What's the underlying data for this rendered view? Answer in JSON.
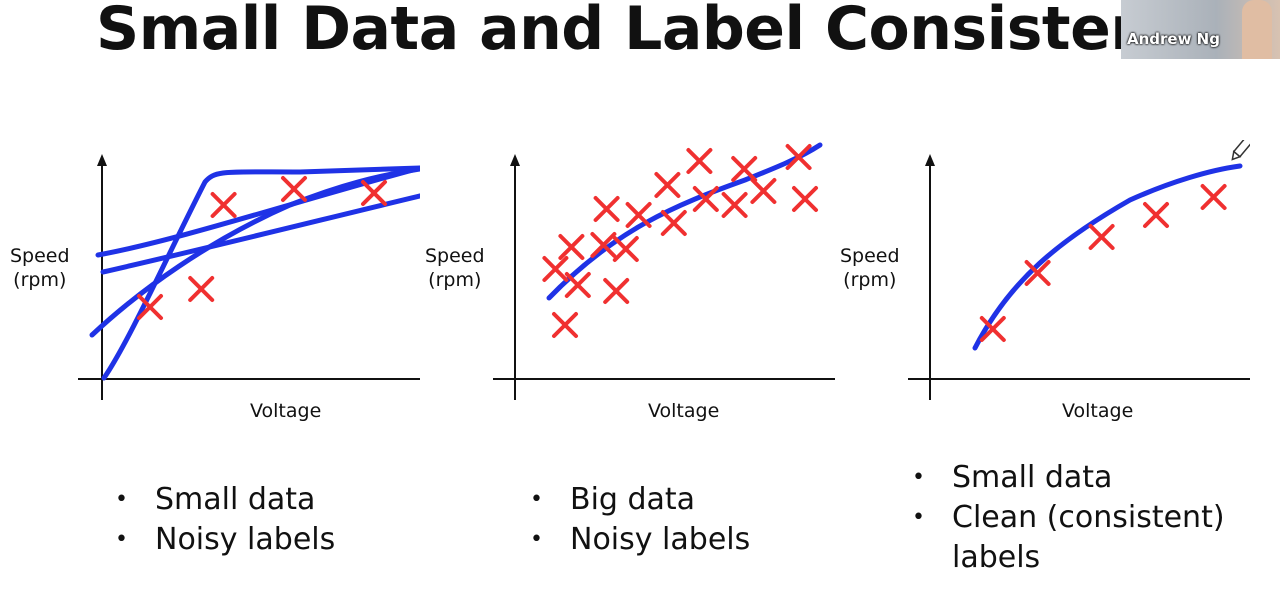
{
  "slide": {
    "title": "Small Data and Label Consisten"
  },
  "video": {
    "name": "Andrew Ng"
  },
  "colors": {
    "marks": "#f03030",
    "curve": "#1f32e6",
    "axis": "#111111"
  },
  "panels": [
    {
      "ylabel_line1": "Speed",
      "ylabel_line2": "(rpm)",
      "xlabel": "Voltage",
      "bullets": [
        "Small data",
        "Noisy labels"
      ]
    },
    {
      "ylabel_line1": "Speed",
      "ylabel_line2": "(rpm)",
      "xlabel": "Voltage",
      "bullets": [
        "Big data",
        "Noisy labels"
      ]
    },
    {
      "ylabel_line1": "Speed",
      "ylabel_line2": "(rpm)",
      "xlabel": "Voltage",
      "bullets": [
        "Small data",
        "Clean (consistent)",
        "labels"
      ]
    }
  ],
  "chart_data": [
    {
      "type": "scatter",
      "xlabel": "Voltage",
      "ylabel": "Speed (rpm)",
      "points": [
        [
          0.15,
          0.36
        ],
        [
          0.31,
          0.45
        ],
        [
          0.38,
          0.87
        ],
        [
          0.6,
          0.95
        ],
        [
          0.85,
          0.93
        ]
      ]
    },
    {
      "type": "scatter",
      "xlabel": "Voltage",
      "ylabel": "Speed (rpm)",
      "points": [
        [
          0.12,
          0.55
        ],
        [
          0.17,
          0.66
        ],
        [
          0.19,
          0.47
        ],
        [
          0.15,
          0.27
        ],
        [
          0.28,
          0.85
        ],
        [
          0.27,
          0.67
        ],
        [
          0.31,
          0.44
        ],
        [
          0.34,
          0.65
        ],
        [
          0.38,
          0.82
        ],
        [
          0.47,
          0.97
        ],
        [
          0.49,
          0.78
        ],
        [
          0.57,
          1.09
        ],
        [
          0.59,
          0.9
        ],
        [
          0.68,
          0.87
        ],
        [
          0.71,
          1.05
        ],
        [
          0.77,
          0.94
        ],
        [
          0.88,
          1.11
        ],
        [
          0.9,
          0.9
        ]
      ]
    },
    {
      "type": "scatter",
      "xlabel": "Voltage",
      "ylabel": "Speed (rpm)",
      "points": [
        [
          0.19,
          0.25
        ],
        [
          0.33,
          0.53
        ],
        [
          0.53,
          0.71
        ],
        [
          0.7,
          0.82
        ],
        [
          0.88,
          0.91
        ]
      ]
    }
  ]
}
